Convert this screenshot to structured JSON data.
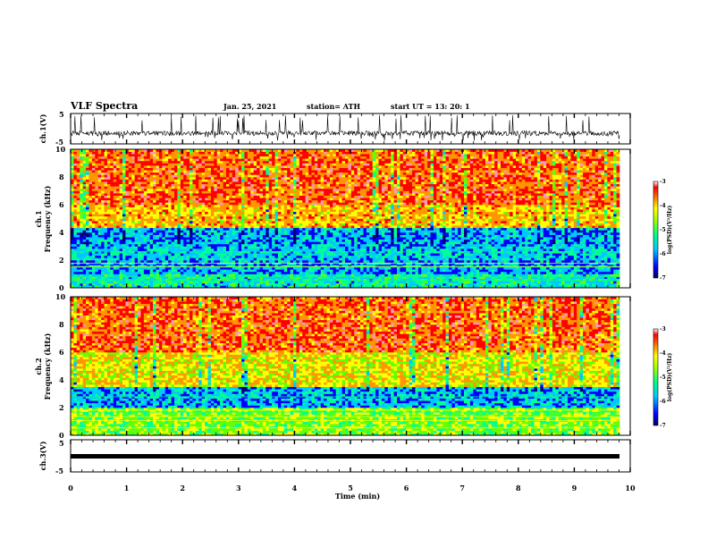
{
  "header": {
    "title": "VLF Spectra",
    "date": "Jan. 25, 2021",
    "station": "station= ATH",
    "start": "start  UT  =   13: 20: 1"
  },
  "chart_data": [
    {
      "type": "line",
      "title": "",
      "ylabel": "ch.1(V)",
      "ylim": [
        -5,
        5
      ],
      "yticks": [
        "5",
        "-5"
      ],
      "series": [
        {
          "name": "",
          "description_values": "waveform oscillating approximately between -4 and 5"
        }
      ]
    },
    {
      "type": "heatmap",
      "ylabel_top": "ch.1",
      "ylabel": "Frequency (kHz)",
      "ylim": [
        0,
        10
      ],
      "yticks": [
        "0",
        "2",
        "4",
        "6",
        "8",
        "10"
      ],
      "band_levels": [
        {
          "from_khz": 0,
          "to_khz": 1,
          "level": -5.6
        },
        {
          "from_khz": 1,
          "to_khz": 2,
          "level": -6.0
        },
        {
          "from_khz": 2,
          "to_khz": 3,
          "level": -5.8
        },
        {
          "from_khz": 3,
          "to_khz": 4.2,
          "level": -5.9
        },
        {
          "from_khz": 4.2,
          "to_khz": 6,
          "level": -4.3
        },
        {
          "from_khz": 6,
          "to_khz": 10,
          "level": -3.9
        }
      ],
      "colorbar": {
        "label": "log(PSD)(V²/Hz)",
        "ticks": [
          "-3",
          "-4",
          "-5",
          "-6",
          "-7"
        ],
        "range": [
          -7,
          -3
        ]
      }
    },
    {
      "type": "heatmap",
      "ylabel_top": "ch.2",
      "ylabel": "Frequency (kHz)",
      "ylim": [
        0,
        10
      ],
      "yticks": [
        "0",
        "2",
        "4",
        "6",
        "8",
        "10"
      ],
      "band_levels": [
        {
          "from_khz": 0,
          "to_khz": 2,
          "level": -5.0
        },
        {
          "from_khz": 2,
          "to_khz": 3.5,
          "level": -5.9
        },
        {
          "from_khz": 3.5,
          "to_khz": 6,
          "level": -4.5
        },
        {
          "from_khz": 6,
          "to_khz": 10,
          "level": -3.9
        }
      ],
      "colorbar": {
        "label": "log(PSD)(V²/Hz)",
        "ticks": [
          "-3",
          "-4",
          "-5",
          "-6",
          "-7"
        ],
        "range": [
          -7,
          -3
        ]
      }
    },
    {
      "type": "line",
      "ylabel": "ch.3(V)",
      "ylim": [
        -5,
        5
      ],
      "yticks": [
        "5",
        "-5"
      ],
      "xlabel": "Time (min)",
      "xlim": [
        0,
        10
      ],
      "xticks": [
        "0",
        "1",
        "2",
        "3",
        "4",
        "5",
        "6",
        "7",
        "8",
        "9",
        "10"
      ],
      "series": [
        {
          "name": "",
          "description_values": "flat thick signal near -2 V"
        }
      ]
    }
  ],
  "colors": {
    "colormap": [
      "#00007a",
      "#0000ff",
      "#00c8ff",
      "#00ff96",
      "#64ff00",
      "#ffff00",
      "#ff9600",
      "#ff0000",
      "#ff96b4",
      "#ffffff"
    ]
  }
}
